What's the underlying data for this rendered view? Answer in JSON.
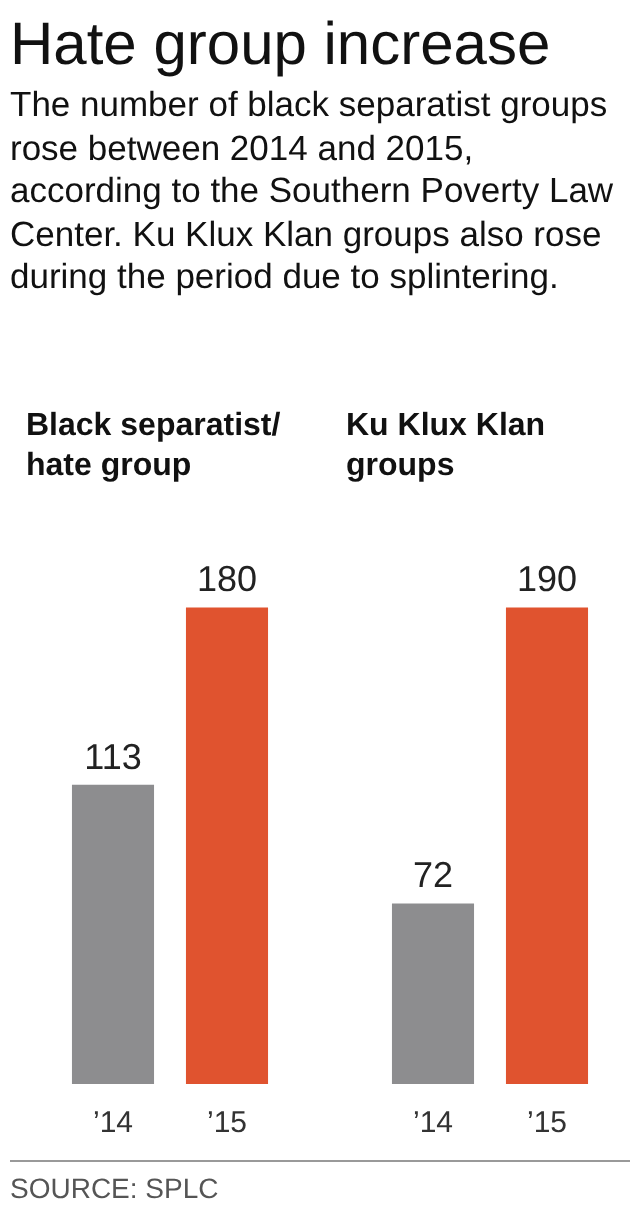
{
  "chart_data": [
    {
      "type": "other",
      "title": "Hate group increase",
      "subtitle": "The number of black separatist groups rose between 2014 and 2015, according to the Southern Poverty Law Center. Ku Klux Klan groups also rose during the period due to splintering.",
      "annotations": [
        "SOURCE: SPLC"
      ]
    },
    {
      "type": "bar",
      "title": "Black separatist/ hate group",
      "categories": [
        "’14",
        "’15"
      ],
      "values": [
        113,
        180
      ],
      "colors": [
        "#8d8d8f",
        "#e0532f"
      ],
      "data_labels": true
    },
    {
      "type": "bar",
      "title": "Ku Klux Klan groups",
      "categories": [
        "’14",
        "’15"
      ],
      "values": [
        72,
        190
      ],
      "colors": [
        "#8d8d8f",
        "#e0532f"
      ],
      "data_labels": true
    }
  ]
}
